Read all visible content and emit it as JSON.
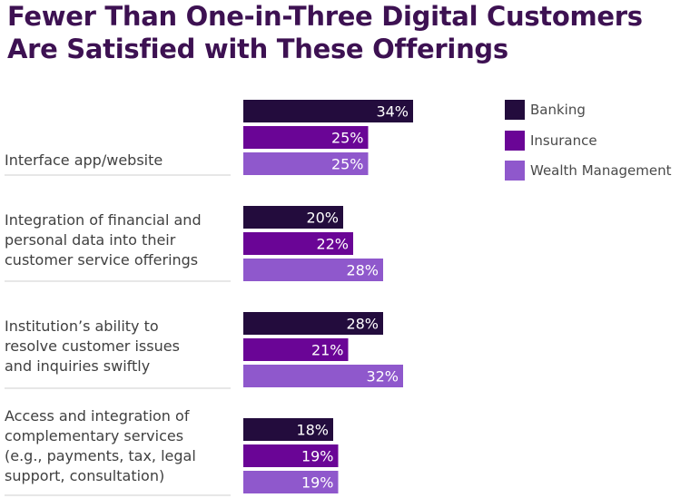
{
  "chart_data": {
    "type": "bar",
    "orientation": "horizontal",
    "title_lines": [
      "Fewer Than One-in-Three Digital Customers",
      "Are Satisfied with These Offerings"
    ],
    "categories": [
      {
        "lines": [
          "Interface app/website"
        ]
      },
      {
        "lines": [
          "Integration of financial and",
          "personal data into their",
          "customer service offerings"
        ]
      },
      {
        "lines": [
          "Institution’s ability to",
          "resolve customer issues",
          "and inquiries swiftly"
        ]
      },
      {
        "lines": [
          "Access and integration of",
          "complementary services",
          "(e.g., payments, tax, legal",
          "support, consultation)"
        ]
      }
    ],
    "series": [
      {
        "name": "Banking",
        "color": "#230c3d",
        "values": [
          34,
          20,
          28,
          18
        ]
      },
      {
        "name": "Insurance",
        "color": "#6a0596",
        "values": [
          25,
          22,
          21,
          19
        ]
      },
      {
        "name": "Wealth Management",
        "color": "#8f58cc",
        "values": [
          25,
          28,
          32,
          19
        ]
      }
    ],
    "value_suffix": "%",
    "legend_position": "top-right",
    "xlabel": "",
    "ylabel": "",
    "grid": false
  }
}
